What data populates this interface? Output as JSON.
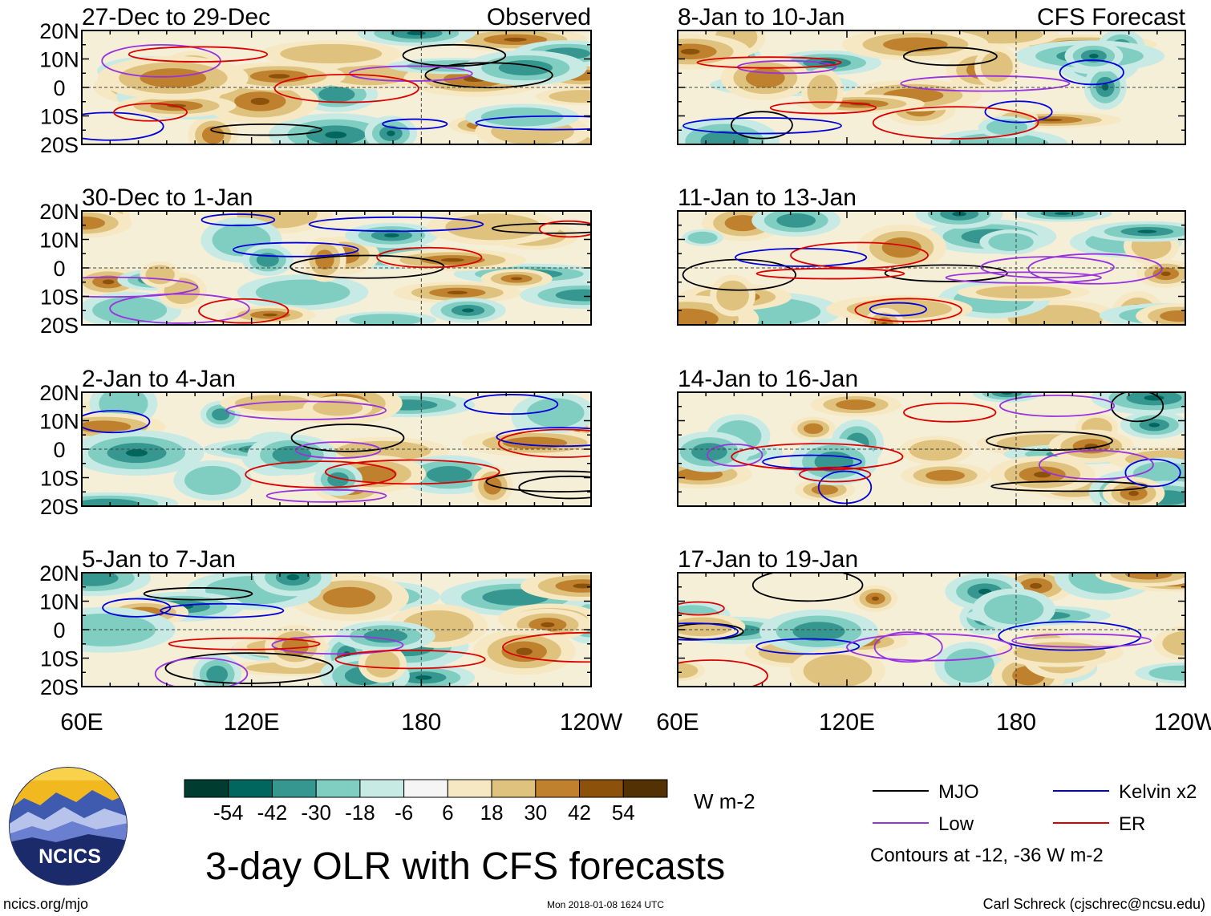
{
  "chart_data": {
    "type": "heatmap",
    "title": "3-day OLR with CFS forecasts",
    "panels": [
      {
        "period": "27-Dec to 29-Dec",
        "kind": "Observed"
      },
      {
        "period": "30-Dec to 1-Jan",
        "kind": ""
      },
      {
        "period": "2-Jan to 4-Jan",
        "kind": ""
      },
      {
        "period": "5-Jan to 7-Jan",
        "kind": ""
      },
      {
        "period": "8-Jan to 10-Jan",
        "kind": "CFS Forecast"
      },
      {
        "period": "11-Jan to 13-Jan",
        "kind": ""
      },
      {
        "period": "14-Jan to 16-Jan",
        "kind": ""
      },
      {
        "period": "17-Jan to 19-Jan",
        "kind": ""
      }
    ],
    "x_ticks": [
      "60E",
      "120E",
      "180",
      "120W"
    ],
    "x_tick_values": [
      60,
      120,
      180,
      240
    ],
    "xlim": [
      60,
      240
    ],
    "y_ticks": [
      "20N",
      "10N",
      "0",
      "10S",
      "20S"
    ],
    "y_tick_values": [
      20,
      10,
      0,
      -10,
      -20
    ],
    "ylim": [
      -20,
      20
    ],
    "colorbar": {
      "labels": [
        "-54",
        "-42",
        "-30",
        "-18",
        "-6",
        "6",
        "18",
        "30",
        "42",
        "54"
      ],
      "colors": [
        "#003c30",
        "#01665e",
        "#35978f",
        "#80cdc1",
        "#c7eae5",
        "#f5f5f5",
        "#f6e8c3",
        "#dfc27d",
        "#bf812d",
        "#8c510a",
        "#543005"
      ],
      "units": "W m-2"
    },
    "legend": [
      {
        "name": "MJO",
        "color": "#000000"
      },
      {
        "name": "Kelvin x2",
        "color": "#0000dd"
      },
      {
        "name": "Low",
        "color": "#9933dd"
      },
      {
        "name": "ER",
        "color": "#dd0000"
      }
    ],
    "contour_note": "Contours at -12, -36 W m-2"
  },
  "footer": {
    "logo_text": "NCICS",
    "site": "ncics.org/mjo",
    "timestamp": "Mon 2018-01-08 1624 UTC",
    "credit": "Carl Schreck (cjschrec@ncsu.edu)"
  }
}
